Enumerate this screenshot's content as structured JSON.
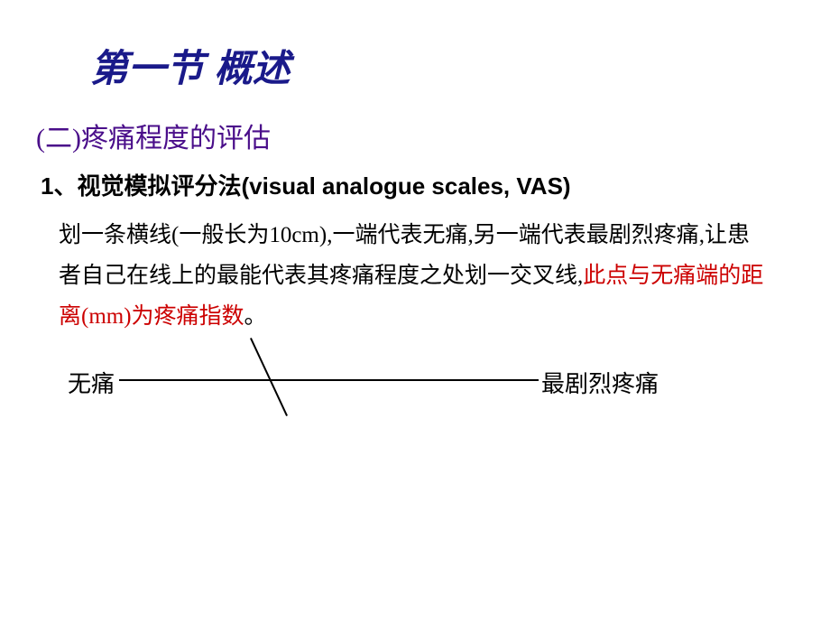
{
  "title": "第一节 概述",
  "subtitle": "(二)疼痛程度的评估",
  "section_heading": "1、视觉模拟评分法(visual analogue scales, VAS)",
  "body_text_part1": "划一条横线(一般长为10cm),一端代表无痛,另一端代表最剧烈疼痛,让患者自己在线上的最能代表其疼痛程度之处划一交叉线,",
  "body_text_highlight": "此点与无痛端的距离(mm)为疼痛指数",
  "body_text_part2": "。",
  "scale": {
    "left_label": "无痛",
    "right_label": "最剧烈疼痛",
    "line_length_cm": 10,
    "cross_position_ratio": 0.33
  },
  "colors": {
    "title": "#1a1a8a",
    "subtitle": "#4a0e8a",
    "body": "#000000",
    "highlight": "#cc0000",
    "background": "#ffffff"
  },
  "fonts": {
    "title_size": 42,
    "subtitle_size": 30,
    "heading_size": 26,
    "body_size": 25,
    "scale_label_size": 26
  }
}
